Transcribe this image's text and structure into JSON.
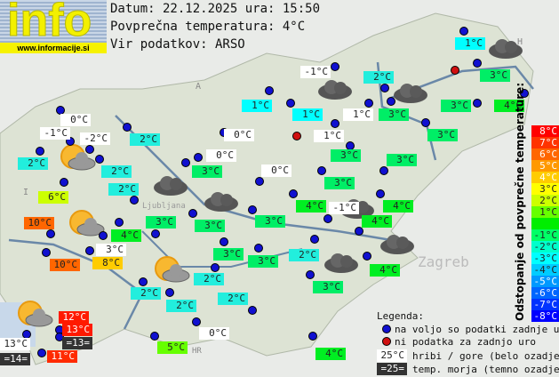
{
  "logo": {
    "word": "info",
    "url": "www.informacije.si"
  },
  "header": {
    "date_line": "Datum: 22.12.2025 ura: 15:50",
    "avg_line": "Povprečna temperatura: 4°C",
    "source_line": "Vir podatkov: ARSO"
  },
  "map_labels": {
    "austria": "A",
    "italy": "I",
    "hungary": "H",
    "croatia": "HR",
    "zagreb": "Zagreb",
    "ljubljana": "Ljubljana"
  },
  "stations": [
    {
      "t": "1°C",
      "bg": "#00ffff"
    },
    {
      "t": "3°C",
      "bg": "#00ee66"
    },
    {
      "t": "4°C",
      "bg": "#00ee22"
    },
    {
      "t": "3°C",
      "bg": "#00ee66"
    },
    {
      "t": "2°C",
      "bg": "#22eedd"
    },
    {
      "t": "-1°C",
      "bg": "#ffffff"
    },
    {
      "t": "1°C",
      "bg": "#00ffff"
    },
    {
      "t": "1°C",
      "bg": "#ffffff"
    },
    {
      "t": "3°C",
      "bg": "#00ee66"
    },
    {
      "t": "1°C",
      "bg": "#ffffff"
    },
    {
      "t": "3°C",
      "bg": "#00ee66"
    },
    {
      "t": "3°C",
      "bg": "#00ee66"
    },
    {
      "t": "3°C",
      "bg": "#00ee66"
    },
    {
      "t": "0°C",
      "bg": "#ffffff"
    },
    {
      "t": "3°C",
      "bg": "#00ee66"
    },
    {
      "t": "4°C",
      "bg": "#00ee22"
    },
    {
      "t": "-1°C",
      "bg": "#ffffff"
    },
    {
      "t": "4°C",
      "bg": "#00ee22"
    },
    {
      "t": "4°C",
      "bg": "#00ee22"
    },
    {
      "t": "1°C",
      "bg": "#00ffff"
    },
    {
      "t": "0°C",
      "bg": "#ffffff"
    },
    {
      "t": "-1°C",
      "bg": "#ffffff"
    },
    {
      "t": "-2°C",
      "bg": "#ffffff"
    },
    {
      "t": "2°C",
      "bg": "#22eedd"
    },
    {
      "t": "0°C",
      "bg": "#ffffff"
    },
    {
      "t": "2°C",
      "bg": "#22eedd"
    },
    {
      "t": "2°C",
      "bg": "#22eedd"
    },
    {
      "t": "0°C",
      "bg": "#ffffff"
    },
    {
      "t": "3°C",
      "bg": "#00ee66"
    },
    {
      "t": "2°C",
      "bg": "#22eedd"
    },
    {
      "t": "6°C",
      "bg": "#ccff00"
    },
    {
      "t": "10°C",
      "bg": "#ff6600"
    },
    {
      "t": "4°C",
      "bg": "#00ee22"
    },
    {
      "t": "3°C",
      "bg": "#00ee66"
    },
    {
      "t": "3°C",
      "bg": "#00ee66"
    },
    {
      "t": "3°C",
      "bg": "#ffffff"
    },
    {
      "t": "10°C",
      "bg": "#ff6600"
    },
    {
      "t": "8°C",
      "bg": "#ffcc00"
    },
    {
      "t": "3°C",
      "bg": "#00ee66"
    },
    {
      "t": "3°C",
      "bg": "#00ee66"
    },
    {
      "t": "3°C",
      "bg": "#00ee66"
    },
    {
      "t": "2°C",
      "bg": "#22eedd"
    },
    {
      "t": "2°C",
      "bg": "#22eedd"
    },
    {
      "t": "2°C",
      "bg": "#22eedd"
    },
    {
      "t": "2°C",
      "bg": "#22eedd"
    },
    {
      "t": "2°C",
      "bg": "#22eedd"
    },
    {
      "t": "4°C",
      "bg": "#00ee22"
    },
    {
      "t": "3°C",
      "bg": "#00ee66"
    },
    {
      "t": "0°C",
      "bg": "#ffffff"
    },
    {
      "t": "5°C",
      "bg": "#66ff00"
    },
    {
      "t": "4°C",
      "bg": "#00ee22"
    },
    {
      "t": "12°C",
      "bg": "#ff1a00"
    },
    {
      "t": "13°C",
      "bg": "#ff1a00"
    },
    {
      "t": "=13=",
      "bg": "#333333"
    },
    {
      "t": "13°C",
      "bg": "#ffffff"
    },
    {
      "t": "=14=",
      "bg": "#333333"
    },
    {
      "t": "11°C",
      "bg": "#ff2a00"
    }
  ],
  "scale": {
    "title": "Odstopanje od povprečne temperature:",
    "items": [
      {
        "t": "8°C",
        "bg": "#ff0000"
      },
      {
        "t": "7°C",
        "bg": "#ff3300"
      },
      {
        "t": "6°C",
        "bg": "#ff6600"
      },
      {
        "t": "5°C",
        "bg": "#ff9900"
      },
      {
        "t": "4°C",
        "bg": "#ffcc00"
      },
      {
        "t": "3°C",
        "bg": "#ffff00"
      },
      {
        "t": "2°C",
        "bg": "#ccff00"
      },
      {
        "t": "1°C",
        "bg": "#66ff00"
      },
      {
        "t": "",
        "bg": "#00ee00"
      },
      {
        "t": "-1°C",
        "bg": "#00ff66"
      },
      {
        "t": "-2°C",
        "bg": "#00ffcc"
      },
      {
        "t": "-3°C",
        "bg": "#00ffff"
      },
      {
        "t": "-4°C",
        "bg": "#00ccff"
      },
      {
        "t": "-5°C",
        "bg": "#0099ff"
      },
      {
        "t": "-6°C",
        "bg": "#0066ff"
      },
      {
        "t": "-7°C",
        "bg": "#0033ff"
      },
      {
        "t": "-8°C",
        "bg": "#0000ff"
      }
    ]
  },
  "legend": {
    "title": "Legenda:",
    "blue_dot": "na voljo so podatki zadnje ure",
    "red_dot": "ni podatka za zadnjo uro",
    "mountain_sample": "25°C",
    "mountain_text": "hribi / gore (belo ozadje)",
    "sea_sample": "=25=",
    "sea_text": "temp. morja (temno ozadje)"
  },
  "icons": {
    "cloud": "overcast-cloud-icon",
    "partly": "partly-cloudy-icon"
  }
}
